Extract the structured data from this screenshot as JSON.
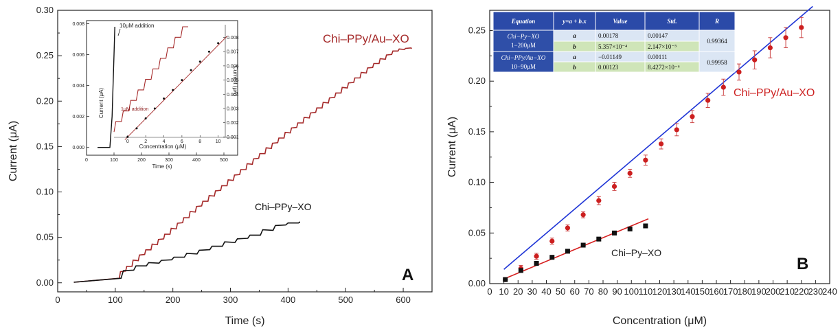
{
  "chart_data": [
    {
      "type": "line",
      "panel_label": "A",
      "xlabel": "Time (s)",
      "ylabel": "Current (μA)",
      "xlim": [
        0,
        650
      ],
      "ylim": [
        -0.01,
        0.3
      ],
      "xticks": [
        "0",
        "100",
        "200",
        "300",
        "400",
        "500",
        "600"
      ],
      "yticks": [
        "0.00",
        "0.05",
        "0.10",
        "0.15",
        "0.20",
        "0.25",
        "0.30"
      ],
      "series": [
        {
          "name": "Chi–PPy/Au–XO",
          "color": "#a52a2a",
          "step_start_x": 100,
          "step_width_s": 11,
          "first_step_x": 107,
          "x": [
            28,
            85,
            100,
            120,
            150,
            200,
            250,
            300,
            350,
            400,
            450,
            500,
            550,
            590,
            610,
            615
          ],
          "y": [
            0.0,
            0.0,
            0.005,
            0.013,
            0.03,
            0.056,
            0.084,
            0.11,
            0.137,
            0.163,
            0.188,
            0.213,
            0.238,
            0.255,
            0.258,
            0.258
          ]
        },
        {
          "name": "Chi–PPy–XO",
          "color": "#111111",
          "step_start_x": 100,
          "step_width_s": 22,
          "first_step_x": 110,
          "x": [
            28,
            85,
            100,
            150,
            200,
            250,
            300,
            350,
            400,
            420
          ],
          "y": [
            0.0,
            0.0,
            0.005,
            0.018,
            0.025,
            0.033,
            0.043,
            0.052,
            0.064,
            0.066
          ]
        }
      ],
      "inset": {
        "xlabel": "Time (s)",
        "ylabel": "Current (μA)",
        "ylabel_right": "Current (μA)",
        "xlabel_top": "Concentration (μM)",
        "xlim": [
          0,
          550
        ],
        "ylim": [
          -0.0005,
          0.0082
        ],
        "xticks": [
          "0",
          "100",
          "200",
          "300",
          "400",
          "500"
        ],
        "yticks": [
          "0.000",
          "0.002",
          "0.004",
          "0.006",
          "0.008"
        ],
        "top_xlim": [
          -1.5,
          12
        ],
        "top_xticks": [
          "0",
          "2",
          "4",
          "6",
          "8",
          "10"
        ],
        "right_ylim": [
          0,
          0.0088
        ],
        "right_yticks": [
          "0.001",
          "0.002",
          "0.003",
          "0.004",
          "0.005",
          "0.006",
          "0.007",
          "0.008"
        ],
        "annotations": [
          "10μM addition",
          "1μM addition"
        ],
        "steep_trace": {
          "x": [
            40,
            85,
            93,
            100,
            103
          ],
          "y": [
            0.0,
            0.0,
            0.002,
            0.006,
            0.0078
          ]
        },
        "step_trace": {
          "x": [
            100,
            370
          ],
          "y": [
            0.001,
            0.0078
          ],
          "steps": 10
        },
        "calibration_points": {
          "x": [
            0,
            1,
            2,
            3,
            4,
            5,
            6,
            7,
            8,
            9,
            10
          ],
          "y": [
            0.001,
            0.0016,
            0.0023,
            0.003,
            0.0037,
            0.0043,
            0.005,
            0.0057,
            0.0063,
            0.007,
            0.0076
          ]
        }
      }
    },
    {
      "type": "scatter",
      "panel_label": "B",
      "xlabel": "Concentration (μM)",
      "ylabel": "Current (μA)",
      "xlim": [
        0,
        240
      ],
      "ylim": [
        0,
        0.27
      ],
      "xticks": [
        "0",
        "10",
        "20",
        "30",
        "40",
        "50",
        "60",
        "70",
        "80",
        "90",
        "100",
        "110",
        "120",
        "130",
        "140",
        "150",
        "160",
        "170",
        "180",
        "190",
        "200",
        "210",
        "220",
        "230",
        "240"
      ],
      "yticks": [
        "0.00",
        "0.05",
        "0.10",
        "0.15",
        "0.20",
        "0.25"
      ],
      "series": [
        {
          "name": "Chi–PPy/Au–XO",
          "color": "#cc1f1f",
          "marker": "circle",
          "x": [
            11,
            22,
            33,
            44,
            55,
            66,
            77,
            88,
            99,
            110,
            121,
            132,
            143,
            154,
            165,
            176,
            187,
            198,
            209,
            220
          ],
          "y": [
            0.004,
            0.015,
            0.027,
            0.042,
            0.055,
            0.068,
            0.082,
            0.096,
            0.109,
            0.122,
            0.138,
            0.152,
            0.165,
            0.181,
            0.194,
            0.209,
            0.221,
            0.233,
            0.243,
            0.253
          ],
          "err": [
            0.002,
            0.003,
            0.003,
            0.003,
            0.003,
            0.003,
            0.004,
            0.004,
            0.004,
            0.005,
            0.005,
            0.006,
            0.006,
            0.007,
            0.008,
            0.008,
            0.009,
            0.01,
            0.01,
            0.01
          ],
          "fit": {
            "x": [
              10,
              228
            ],
            "y": [
              0.0141,
              0.2738
            ]
          }
        },
        {
          "name": "Chi–Py–XO",
          "color": "#111111",
          "marker": "square",
          "x": [
            11,
            22,
            33,
            44,
            55,
            66,
            77,
            88,
            99,
            110
          ],
          "y": [
            0.004,
            0.013,
            0.02,
            0.026,
            0.032,
            0.038,
            0.044,
            0.05,
            0.054,
            0.057
          ],
          "fit": {
            "x": [
              10,
              112
            ],
            "y": [
              0.0046,
              0.064
            ]
          }
        }
      ],
      "table": {
        "headers": [
          "Equation",
          "y=a + b.x",
          "Value",
          "Std.",
          "R"
        ],
        "rows": [
          {
            "equation": "Chi−Py−XO",
            "range": "1−200μM",
            "r": "0.99364",
            "params": [
              {
                "name": "a",
                "value": "0.00178",
                "std": "0.00147"
              },
              {
                "name": "b",
                "value": "5.357×10⁻⁴",
                "std": "2.147×10⁻⁵"
              }
            ]
          },
          {
            "equation": "Chi−PPy/Au−XO",
            "range": "10−90μM",
            "r": "0.99958",
            "params": [
              {
                "name": "a",
                "value": "−0.01149",
                "std": "0.00111"
              },
              {
                "name": "b",
                "value": "0.00123",
                "std": "8.4272×10⁻⁶"
              }
            ]
          }
        ]
      }
    }
  ]
}
